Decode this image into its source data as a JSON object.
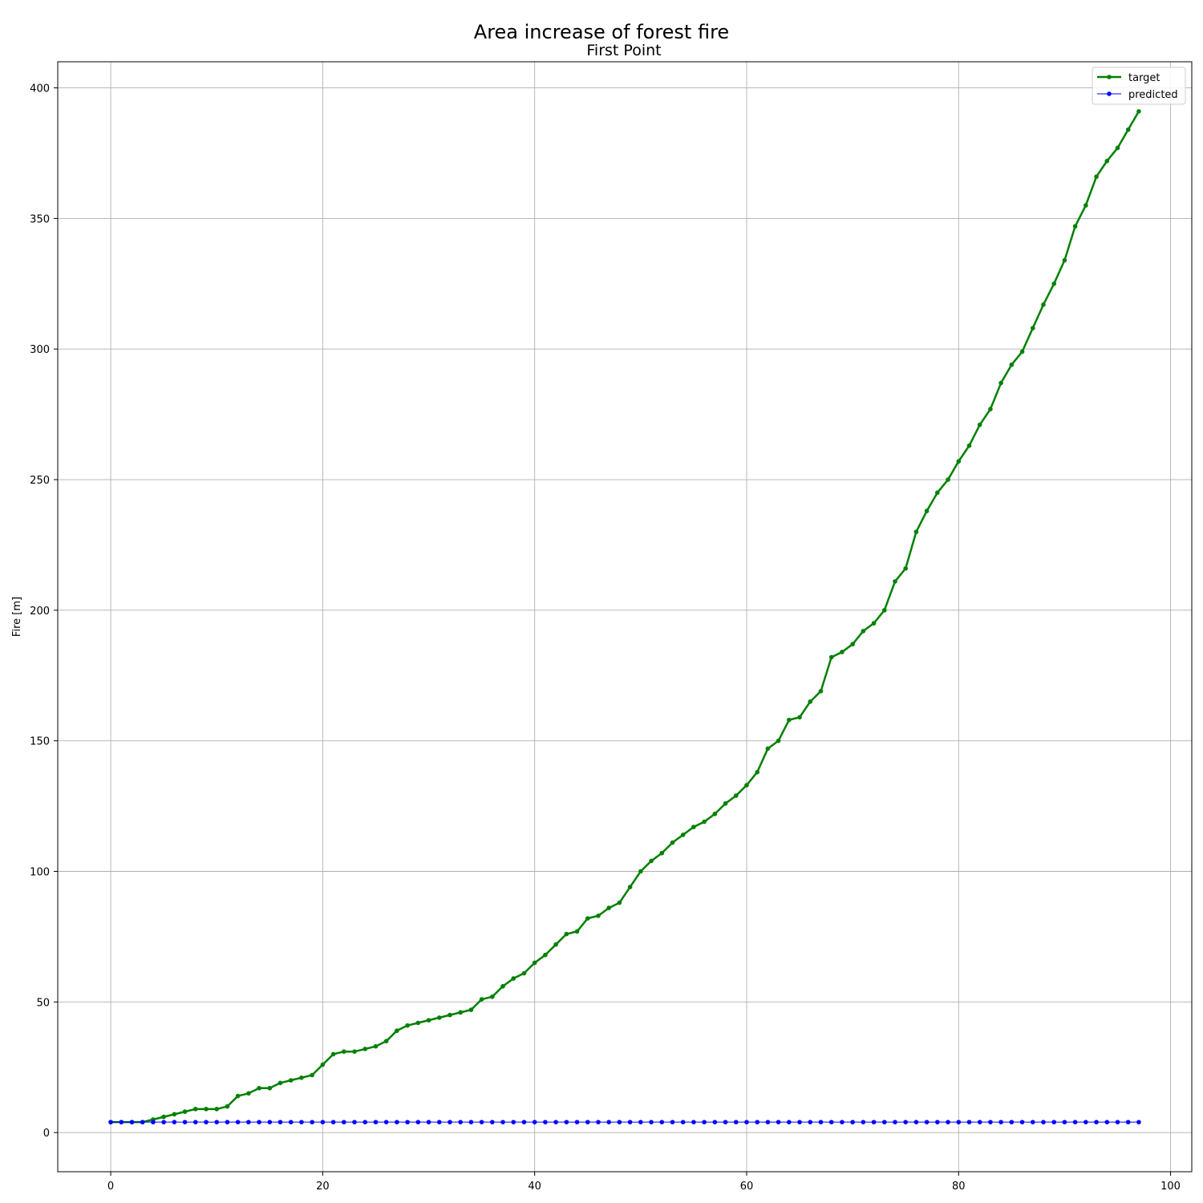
{
  "chart_data": {
    "type": "line",
    "suptitle": "Area increase of forest fire",
    "title": "First Point",
    "xlabel": "",
    "ylabel": "Fire [m]",
    "xlim": [
      -5,
      102
    ],
    "ylim": [
      -15,
      410
    ],
    "xticks": [
      0,
      20,
      40,
      60,
      80,
      100
    ],
    "yticks": [
      0,
      50,
      100,
      150,
      200,
      250,
      300,
      350,
      400
    ],
    "grid": true,
    "legend_position": "top-right",
    "x": [
      0,
      1,
      2,
      3,
      4,
      5,
      6,
      7,
      8,
      9,
      10,
      11,
      12,
      13,
      14,
      15,
      16,
      17,
      18,
      19,
      20,
      21,
      22,
      23,
      24,
      25,
      26,
      27,
      28,
      29,
      30,
      31,
      32,
      33,
      34,
      35,
      36,
      37,
      38,
      39,
      40,
      41,
      42,
      43,
      44,
      45,
      46,
      47,
      48,
      49,
      50,
      51,
      52,
      53,
      54,
      55,
      56,
      57,
      58,
      59,
      60,
      61,
      62,
      63,
      64,
      65,
      66,
      67,
      68,
      69,
      70,
      71,
      72,
      73,
      74,
      75,
      76,
      77,
      78,
      79,
      80,
      81,
      82,
      83,
      84,
      85,
      86,
      87,
      88,
      89,
      90,
      91,
      92,
      93,
      94,
      95,
      96,
      97
    ],
    "series": [
      {
        "name": "target",
        "color": "#008000",
        "values": [
          4,
          4,
          4,
          4,
          5,
          6,
          7,
          8,
          9,
          9,
          9,
          10,
          14,
          15,
          17,
          17,
          19,
          20,
          21,
          22,
          26,
          30,
          31,
          31,
          32,
          33,
          35,
          39,
          41,
          42,
          43,
          44,
          45,
          46,
          47,
          51,
          52,
          56,
          59,
          61,
          65,
          68,
          72,
          76,
          77,
          82,
          83,
          86,
          88,
          94,
          100,
          104,
          107,
          111,
          114,
          117,
          119,
          122,
          126,
          129,
          133,
          138,
          147,
          150,
          158,
          159,
          165,
          169,
          182,
          184,
          187,
          192,
          195,
          200,
          211,
          216,
          230,
          238,
          245,
          250,
          257,
          263,
          271,
          277,
          287,
          294,
          299,
          308,
          317,
          325,
          334,
          347,
          355,
          366,
          372,
          377,
          384,
          391
        ]
      },
      {
        "name": "predicted",
        "color": "#0000ff",
        "values": [
          4,
          4,
          4,
          4,
          4,
          4,
          4,
          4,
          4,
          4,
          4,
          4,
          4,
          4,
          4,
          4,
          4,
          4,
          4,
          4,
          4,
          4,
          4,
          4,
          4,
          4,
          4,
          4,
          4,
          4,
          4,
          4,
          4,
          4,
          4,
          4,
          4,
          4,
          4,
          4,
          4,
          4,
          4,
          4,
          4,
          4,
          4,
          4,
          4,
          4,
          4,
          4,
          4,
          4,
          4,
          4,
          4,
          4,
          4,
          4,
          4,
          4,
          4,
          4,
          4,
          4,
          4,
          4,
          4,
          4,
          4,
          4,
          4,
          4,
          4,
          4,
          4,
          4,
          4,
          4,
          4,
          4,
          4,
          4,
          4,
          4,
          4,
          4,
          4,
          4,
          4,
          4,
          4,
          4,
          4,
          4,
          4,
          4
        ]
      }
    ]
  }
}
